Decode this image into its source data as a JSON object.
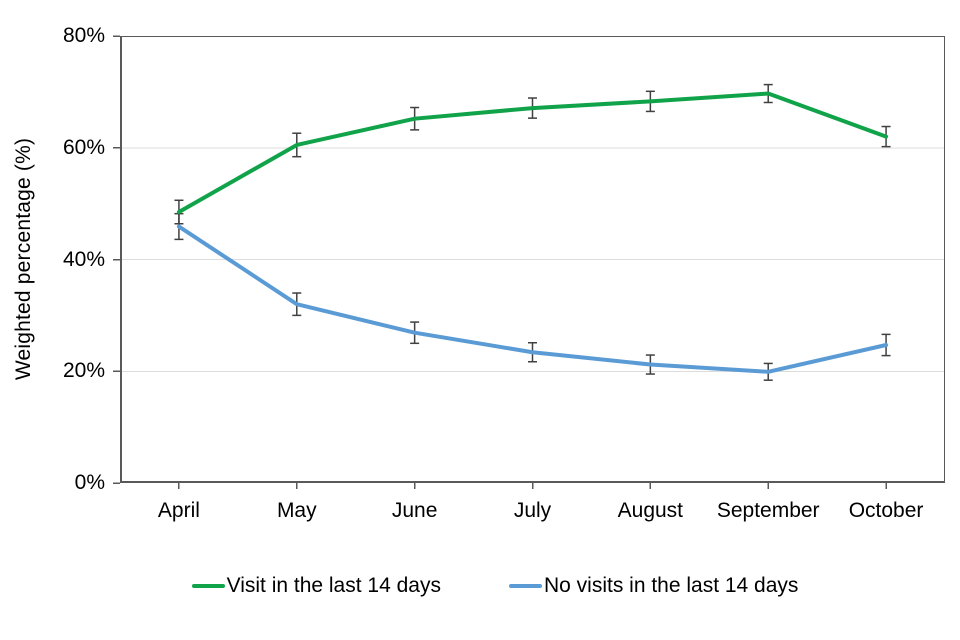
{
  "page": {
    "background": "#ffffff"
  },
  "chart_data": {
    "type": "line",
    "title": "",
    "categories": [
      "April",
      "May",
      "June",
      "July",
      "August",
      "September",
      "October"
    ],
    "series": [
      {
        "name": "Visit in the last 14 days",
        "color": "#10A34A",
        "values": [
          48.5,
          60.5,
          65.2,
          67.1,
          68.3,
          69.7,
          62.0
        ],
        "errors": [
          2.1,
          2.1,
          2.0,
          1.8,
          1.8,
          1.6,
          1.8
        ]
      },
      {
        "name": "No visits in the last 14 days",
        "color": "#5B9BD5",
        "values": [
          45.9,
          32.0,
          26.9,
          23.4,
          21.2,
          19.9,
          24.7
        ],
        "errors": [
          2.3,
          2.0,
          1.9,
          1.7,
          1.7,
          1.5,
          1.9
        ]
      }
    ],
    "xlabel": "",
    "ylabel": "Weighted percentage (%)",
    "ylim": [
      0,
      80
    ],
    "yticks": [
      0,
      20,
      40,
      60,
      80
    ],
    "ytick_labels": [
      "0%",
      "20%",
      "40%",
      "60%",
      "80%"
    ],
    "grid": "horizontal-light",
    "legend_position": "bottom",
    "has_error_bars": true,
    "colors": {
      "axis": "#595959",
      "gridline": "#DCDCDC",
      "error_bar": "#404040",
      "text": "#000000"
    }
  }
}
